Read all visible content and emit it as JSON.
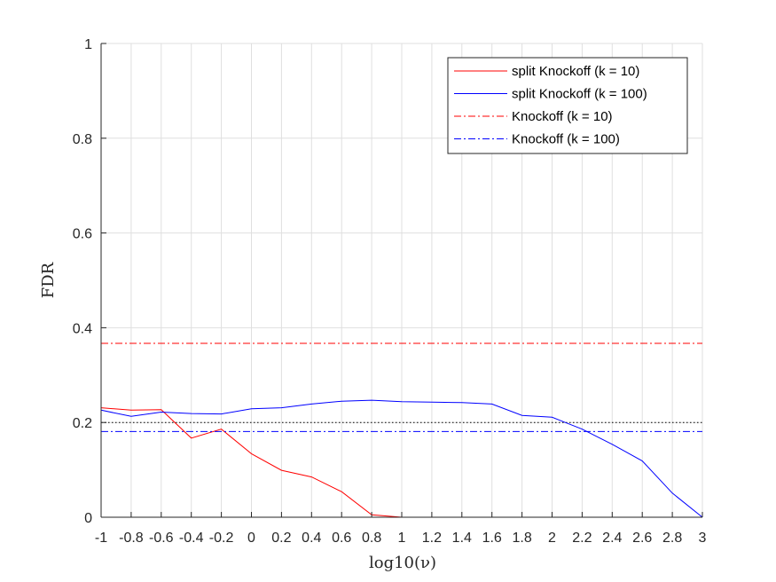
{
  "chart_data": {
    "type": "line",
    "xlabel": "log10(ν)",
    "ylabel": "FDR",
    "xlim": [
      -1,
      3
    ],
    "ylim": [
      0,
      1
    ],
    "grid": true,
    "legend_placement": "top-right",
    "x_ticks": [
      -1,
      -0.8,
      -0.6,
      -0.4,
      -0.2,
      0,
      0.2,
      0.4,
      0.6,
      0.8,
      1,
      1.2,
      1.4,
      1.6,
      1.8,
      2,
      2.2,
      2.4,
      2.6,
      2.8,
      3
    ],
    "x_tick_labels": [
      "-1",
      "-0.8",
      "-0.6",
      "-0.4",
      "-0.2",
      "0",
      "0.2",
      "0.4",
      "0.6",
      "0.8",
      "1",
      "1.2",
      "1.4",
      "1.6",
      "1.8",
      "2",
      "2.2",
      "2.4",
      "2.6",
      "2.8",
      "3"
    ],
    "y_ticks": [
      0,
      0.2,
      0.4,
      0.6,
      0.8,
      1
    ],
    "y_tick_labels": [
      "0",
      "0.2",
      "0.4",
      "0.6",
      "0.8",
      "1"
    ],
    "x": [
      -1,
      -0.8,
      -0.6,
      -0.4,
      -0.2,
      0,
      0.2,
      0.4,
      0.6,
      0.8,
      1,
      1.2,
      1.4,
      1.6,
      1.8,
      2,
      2.2,
      2.4,
      2.6,
      2.8,
      3
    ],
    "series": [
      {
        "name": "split Knockoff (k = 10)",
        "style": "solid",
        "color": "#ff0000",
        "values": [
          0.231,
          0.226,
          0.227,
          0.167,
          0.186,
          0.134,
          0.099,
          0.085,
          0.054,
          0.005,
          0.0,
          0.0,
          0.0,
          0.0,
          0.0,
          0.0,
          0.0,
          0.0,
          0.0,
          0.0,
          0.0
        ]
      },
      {
        "name": "split Knockoff (k = 100)",
        "style": "solid",
        "color": "#0000ff",
        "values": [
          0.226,
          0.213,
          0.222,
          0.219,
          0.218,
          0.229,
          0.231,
          0.239,
          0.245,
          0.247,
          0.244,
          0.243,
          0.242,
          0.239,
          0.215,
          0.211,
          0.186,
          0.154,
          0.119,
          0.051,
          0.0
        ]
      },
      {
        "name": "Knockoff (k = 10)",
        "style": "dashdot",
        "color": "#ff0000",
        "constant": 0.367
      },
      {
        "name": "Knockoff (k = 100)",
        "style": "dashdot",
        "color": "#0000ff",
        "constant": 0.181
      }
    ],
    "reference_line": {
      "style": "dotted",
      "color": "#000000",
      "y": 0.2
    }
  }
}
